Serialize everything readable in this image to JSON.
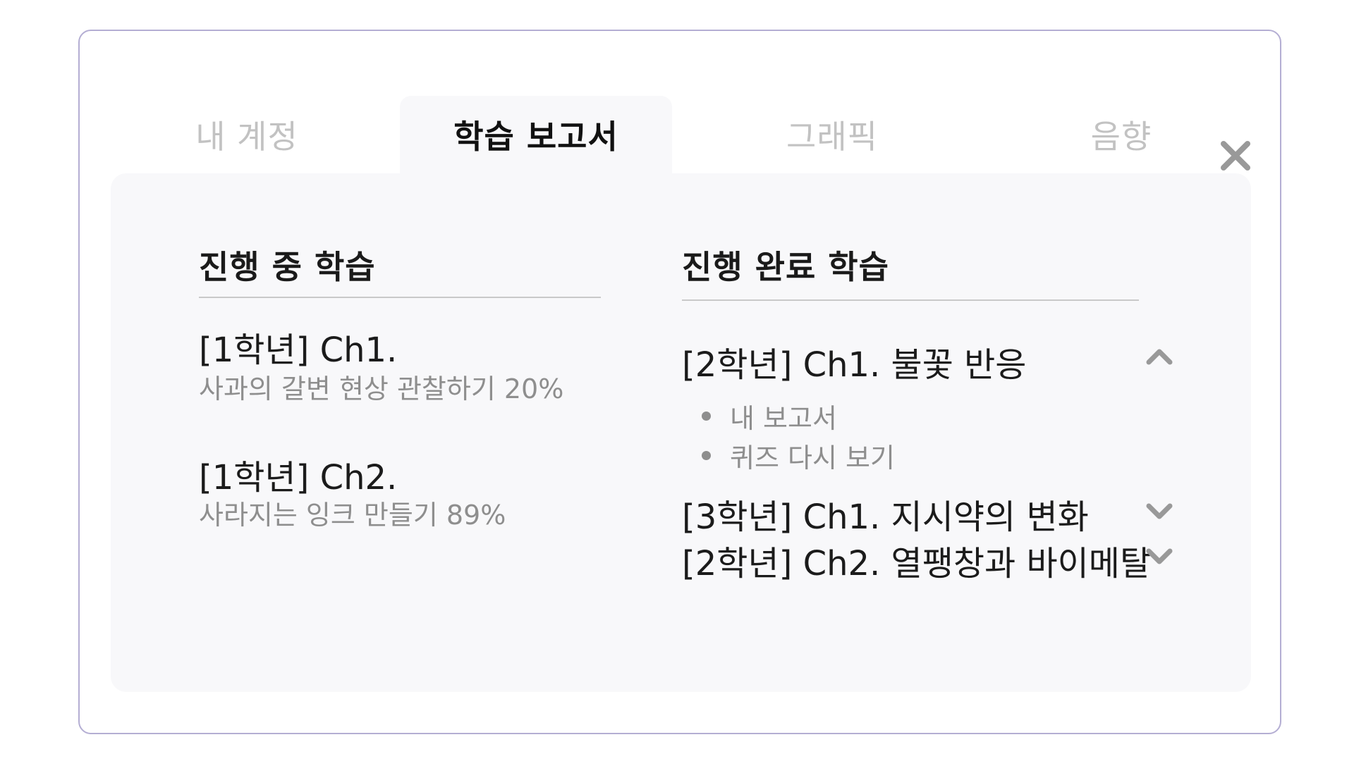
{
  "tabs": [
    {
      "label": "내 계정",
      "active": false
    },
    {
      "label": "학습 보고서",
      "active": true
    },
    {
      "label": "그래픽",
      "active": false
    },
    {
      "label": "음향",
      "active": false
    }
  ],
  "close_icon": "close-icon",
  "in_progress": {
    "title": "진행 중 학습",
    "items": [
      {
        "title": "[1학년] Ch1.",
        "subtitle": "사과의 갈변 현상 관찰하기 20%"
      },
      {
        "title": "[1학년] Ch2.",
        "subtitle": "사라지는 잉크 만들기 89%"
      }
    ]
  },
  "completed": {
    "title": "진행 완료 학습",
    "items": [
      {
        "title": "[2학년] Ch1. 불꽃 반응",
        "expanded": true,
        "icon": "chevron-up-icon",
        "subitems": [
          "내 보고서",
          "퀴즈 다시 보기"
        ]
      },
      {
        "title": "[3학년] Ch1. 지시약의 변화",
        "expanded": false,
        "icon": "chevron-down-icon"
      },
      {
        "title": "[2학년] Ch2. 열팽창과 바이메탈",
        "expanded": false,
        "icon": "chevron-down-icon"
      }
    ]
  },
  "colors": {
    "border": "#b4aed3",
    "panel_bg": "#f8f8fa",
    "inactive_tab": "#c2c2c2",
    "secondary_text": "#8e8e8e",
    "icon_gray": "#999999"
  }
}
